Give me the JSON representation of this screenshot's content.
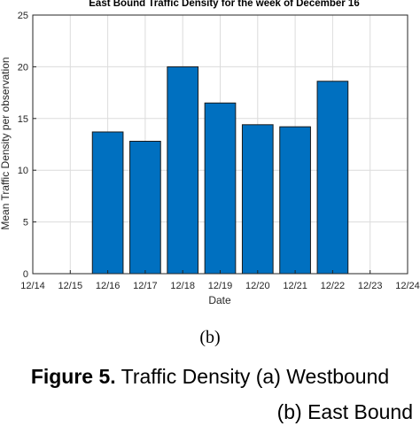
{
  "chart_data": {
    "type": "bar",
    "title": "East Bound Traffic Density for the week of December 16",
    "xlabel": "Date",
    "ylabel": "Mean Traffic Density per observation",
    "x_ticks": [
      "12/14",
      "12/15",
      "12/16",
      "12/17",
      "12/18",
      "12/19",
      "12/20",
      "12/21",
      "12/22",
      "12/23",
      "12/24"
    ],
    "categories": [
      "12/16",
      "12/17",
      "12/18",
      "12/19",
      "12/20",
      "12/21",
      "12/22"
    ],
    "values": [
      13.7,
      12.8,
      20.0,
      16.5,
      14.4,
      14.2,
      18.6
    ],
    "ylim": [
      0,
      25
    ],
    "y_ticks": [
      0,
      5,
      10,
      15,
      20,
      25
    ],
    "grid": true,
    "bar_color": "#0070C0"
  },
  "caption": {
    "sub_label": "(b)",
    "figure_label": "Figure 5.",
    "line1": "Traffic Density (a) Westbound",
    "line2": "(b) East Bound"
  }
}
